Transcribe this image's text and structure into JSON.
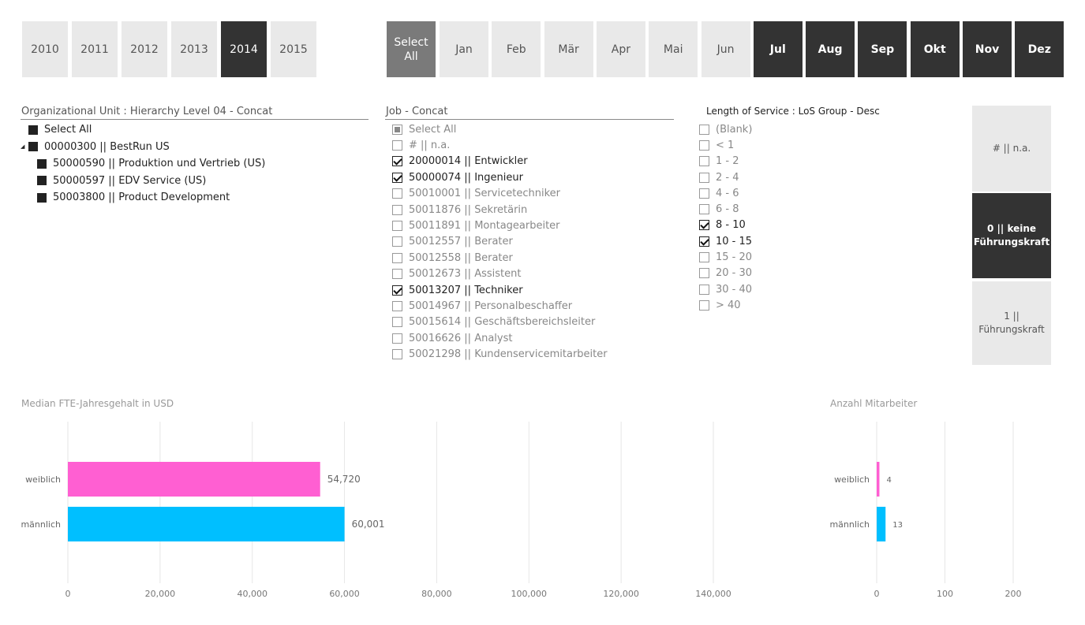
{
  "years": [
    {
      "label": "2010",
      "selected": false
    },
    {
      "label": "2011",
      "selected": false
    },
    {
      "label": "2012",
      "selected": false
    },
    {
      "label": "2013",
      "selected": false
    },
    {
      "label": "2014",
      "selected": true
    },
    {
      "label": "2015",
      "selected": false
    }
  ],
  "months": {
    "select_all_label": "Select All",
    "items": [
      {
        "label": "Jan",
        "selected": false
      },
      {
        "label": "Feb",
        "selected": false
      },
      {
        "label": "Mär",
        "selected": false
      },
      {
        "label": "Apr",
        "selected": false
      },
      {
        "label": "Mai",
        "selected": false
      },
      {
        "label": "Jun",
        "selected": false
      },
      {
        "label": "Jul",
        "selected": true
      },
      {
        "label": "Aug",
        "selected": true
      },
      {
        "label": "Sep",
        "selected": true
      },
      {
        "label": "Okt",
        "selected": true
      },
      {
        "label": "Nov",
        "selected": true
      },
      {
        "label": "Dez",
        "selected": true
      }
    ]
  },
  "org_slicer": {
    "title": "Organizational Unit : Hierarchy Level 04 - Concat",
    "items": [
      {
        "label": "Select All",
        "level": 0
      },
      {
        "label": "00000300 || BestRun US",
        "level": 0,
        "expander": "◢"
      },
      {
        "label": "50000590 || Produktion und Vertrieb (US)",
        "level": 1
      },
      {
        "label": "50000597 || EDV Service (US)",
        "level": 1
      },
      {
        "label": "50003800 || Product Development",
        "level": 1
      }
    ]
  },
  "job_slicer": {
    "title": "Job - Concat",
    "items": [
      {
        "label": "Select All",
        "state": "partial"
      },
      {
        "label": "# || n.a.",
        "state": "off"
      },
      {
        "label": "20000014 || Entwickler",
        "state": "on"
      },
      {
        "label": "50000074 || Ingenieur",
        "state": "on"
      },
      {
        "label": "50010001 || Servicetechniker",
        "state": "off"
      },
      {
        "label": "50011876 || Sekretärin",
        "state": "off"
      },
      {
        "label": "50011891 || Montagearbeiter",
        "state": "off"
      },
      {
        "label": "50012557 || Berater",
        "state": "off"
      },
      {
        "label": "50012558 || Berater",
        "state": "off"
      },
      {
        "label": "50012673 || Assistent",
        "state": "off"
      },
      {
        "label": "50013207 || Techniker",
        "state": "on"
      },
      {
        "label": "50014967 || Personalbeschaffer",
        "state": "off"
      },
      {
        "label": "50015614 || Geschäftsbereichsleiter",
        "state": "off"
      },
      {
        "label": "50016626 || Analyst",
        "state": "off"
      },
      {
        "label": "50021298 || Kundenservicemitarbeiter",
        "state": "off"
      }
    ]
  },
  "los_slicer": {
    "title": "Length of Service : LoS Group - Desc",
    "items": [
      {
        "label": "(Blank)",
        "state": "off"
      },
      {
        "label": "< 1",
        "state": "off"
      },
      {
        "label": "1 - 2",
        "state": "off"
      },
      {
        "label": "2 - 4",
        "state": "off"
      },
      {
        "label": "4 - 6",
        "state": "off"
      },
      {
        "label": "6 - 8",
        "state": "off"
      },
      {
        "label": "8 - 10",
        "state": "on"
      },
      {
        "label": "10 - 15",
        "state": "on"
      },
      {
        "label": "15 - 20",
        "state": "off"
      },
      {
        "label": "20 - 30",
        "state": "off"
      },
      {
        "label": "30 - 40",
        "state": "off"
      },
      {
        "label": "> 40",
        "state": "off"
      }
    ]
  },
  "manager_tiles": [
    {
      "label": "# || n.a.",
      "selected": false
    },
    {
      "label": "0 || keine Führungskraft",
      "selected": true
    },
    {
      "label": "1 || Führungskraft",
      "selected": false
    }
  ],
  "colors": {
    "female": "#ff5fd2",
    "male": "#00bfff",
    "selected_tile": "#333333",
    "tile": "#e9e9e9"
  },
  "chart_data": [
    {
      "type": "bar",
      "orientation": "horizontal",
      "title": "Median FTE-Jahresgehalt in USD",
      "categories": [
        "weiblich",
        "männlich"
      ],
      "values": [
        54720,
        60001
      ],
      "value_labels": [
        "54,720",
        "60,001"
      ],
      "xlim": [
        0,
        150000
      ],
      "ticks": [
        0,
        20000,
        40000,
        60000,
        80000,
        100000,
        120000,
        140000
      ],
      "tick_labels": [
        "0",
        "20,000",
        "40,000",
        "60,000",
        "80,000",
        "100,000",
        "120,000",
        "140,000"
      ],
      "bar_colors": [
        "#ff5fd2",
        "#00bfff"
      ],
      "grid": true
    },
    {
      "type": "bar",
      "orientation": "horizontal",
      "title": "Anzahl Mitarbeiter",
      "categories": [
        "weiblich",
        "männlich"
      ],
      "values": [
        4,
        13
      ],
      "value_labels": [
        "4",
        "13"
      ],
      "xlim": [
        0,
        230
      ],
      "ticks": [
        0,
        100,
        200
      ],
      "tick_labels": [
        "0",
        "100",
        "200"
      ],
      "bar_colors": [
        "#ff5fd2",
        "#00bfff"
      ],
      "grid": true
    }
  ]
}
